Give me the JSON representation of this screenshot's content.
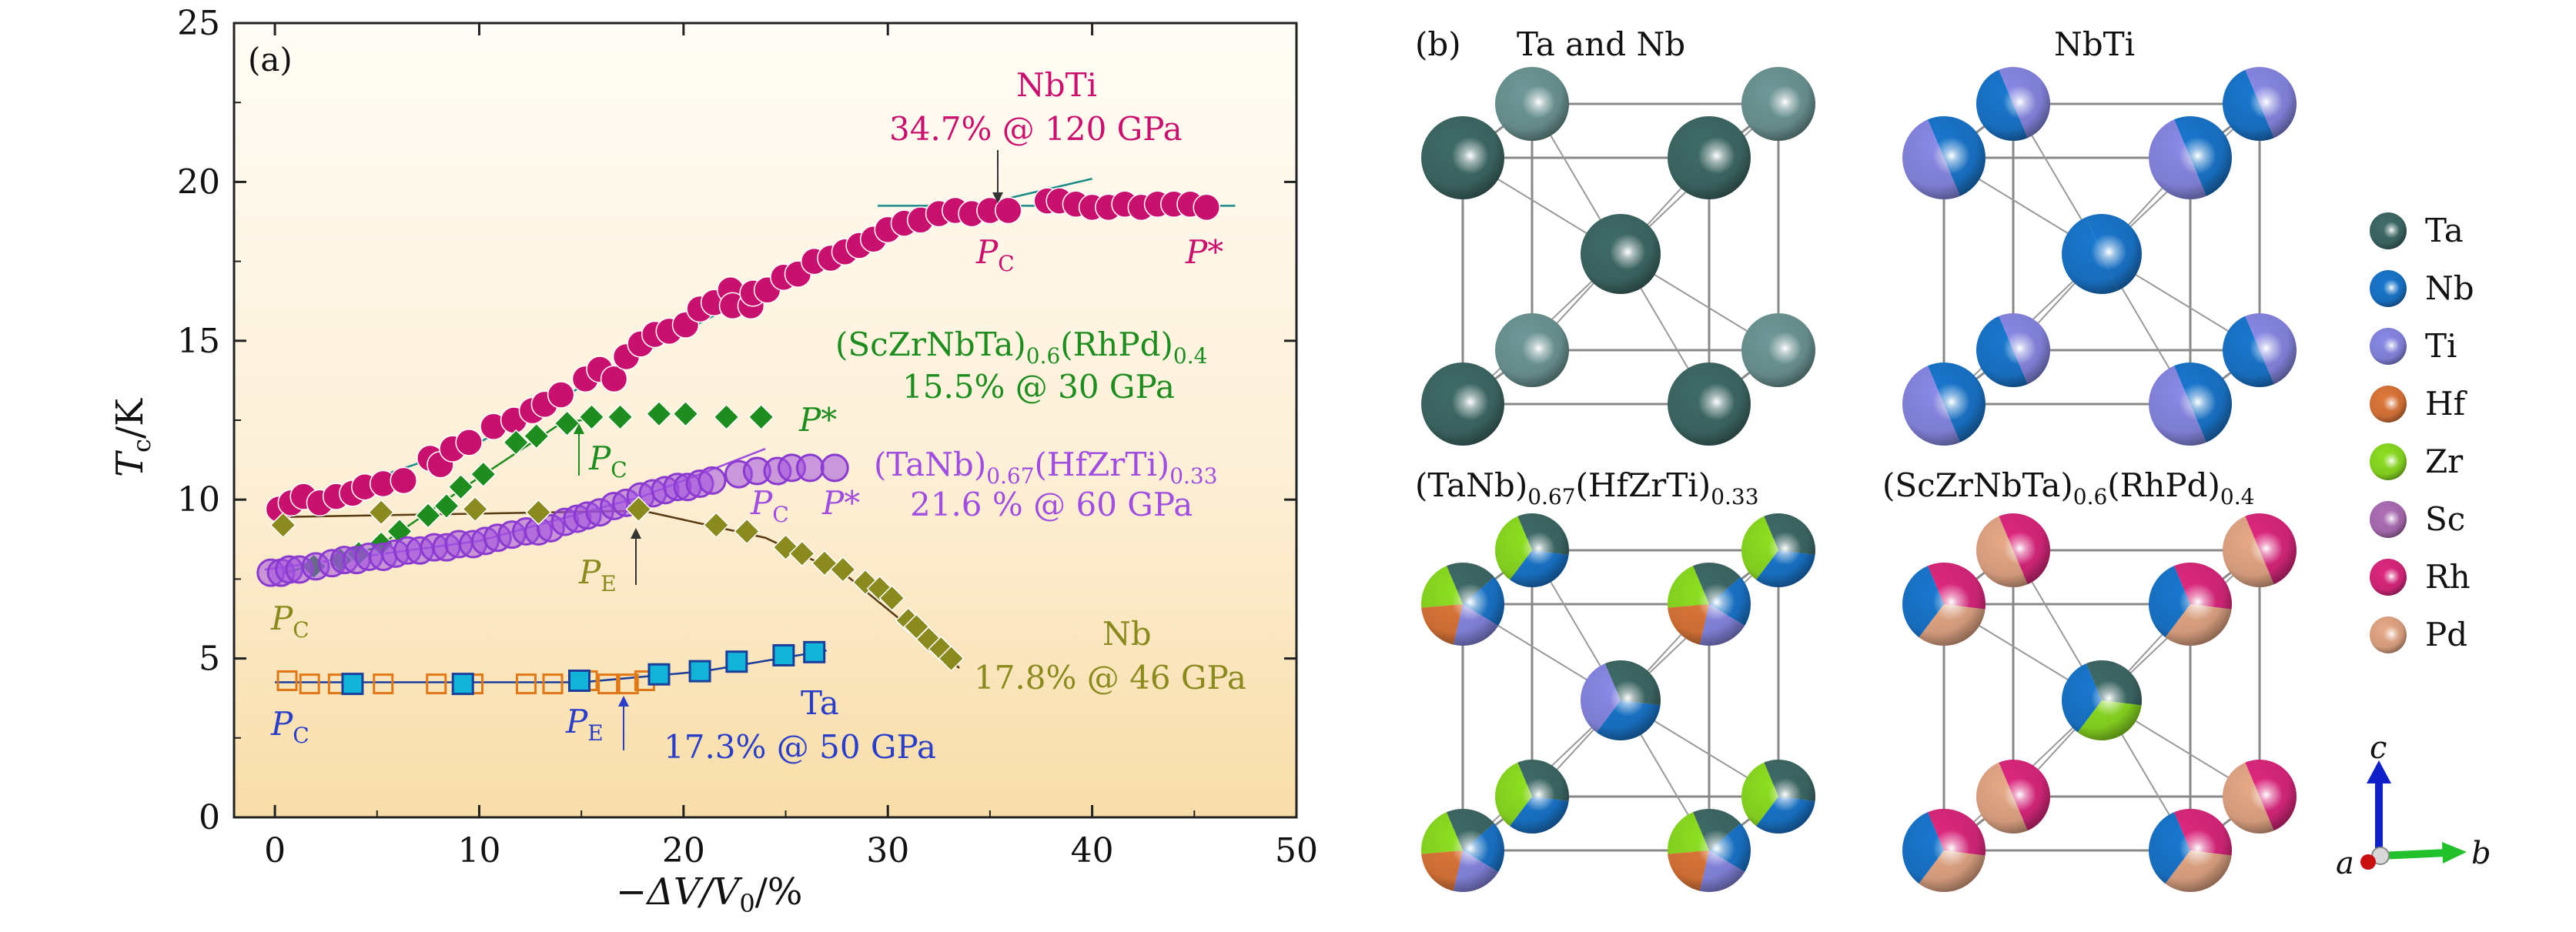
{
  "panel_a": {
    "label": "(a)",
    "xlabel": "−ΔV/V",
    "xlabel_sub": "0",
    "xlabel_suffix": "/%",
    "ylabel": "T",
    "ylabel_sub": "c",
    "ylabel_suffix": "/K",
    "annotations": {
      "nbti_name": "NbTi",
      "nbti_detail": "34.7% @ 120 GPa",
      "hea1_name_a": "(ScZrNbTa)",
      "hea1_name_sub1": "0.6",
      "hea1_name_b": "(RhPd)",
      "hea1_name_sub2": "0.4",
      "hea1_detail": "15.5% @ 30 GPa",
      "hea2_name_a": "(TaNb)",
      "hea2_name_sub1": "0.67",
      "hea2_name_b": "(HfZrTi)",
      "hea2_name_sub2": "0.33",
      "hea2_detail": "21.6 % @ 60 GPa",
      "nb_name": "Nb",
      "nb_detail": "17.8% @ 46 GPa",
      "ta_name": "Ta",
      "ta_detail": "17.3% @ 50 GPa",
      "p": "P",
      "sub_c": "C",
      "sub_e": "E",
      "p_star": "P*"
    }
  },
  "panel_b": {
    "label": "(b)",
    "titles": {
      "ta_nb": "Ta and Nb",
      "nbti": "NbTi",
      "hea2_a": "(TaNb)",
      "hea2_s1": "0.67",
      "hea2_b": "(HfZrTi)",
      "hea2_s2": "0.33",
      "hea1_a": "(ScZrNbTa)",
      "hea1_s1": "0.6",
      "hea1_b": "(RhPd)",
      "hea1_s2": "0.4"
    },
    "legend": [
      {
        "label": "Ta",
        "color": "#3f6b68"
      },
      {
        "label": "Nb",
        "color": "#1a78d0"
      },
      {
        "label": "Ti",
        "color": "#8a8ae8"
      },
      {
        "label": "Hf",
        "color": "#e0783a"
      },
      {
        "label": "Zr",
        "color": "#8ee022"
      },
      {
        "label": "Sc",
        "color": "#b070b8"
      },
      {
        "label": "Rh",
        "color": "#e02880"
      },
      {
        "label": "Pd",
        "color": "#e8aa88"
      }
    ],
    "axes": {
      "c": "c",
      "a": "a",
      "b": "b"
    }
  },
  "chart_data": {
    "type": "scatter",
    "xlabel": "−ΔV/V0/%",
    "ylabel": "Tc/K",
    "xlim": [
      -2,
      50
    ],
    "ylim": [
      0,
      25
    ],
    "xticks": [
      0,
      10,
      20,
      30,
      40,
      50
    ],
    "yticks": [
      0,
      5,
      10,
      15,
      20,
      25
    ],
    "grid": false,
    "series": [
      {
        "name": "NbTi",
        "color": "#c8106e",
        "marker": "circle",
        "points": [
          [
            0.2,
            9.7
          ],
          [
            0.8,
            9.9
          ],
          [
            1.4,
            10.1
          ],
          [
            2.2,
            9.9
          ],
          [
            3.0,
            10.1
          ],
          [
            3.8,
            10.2
          ],
          [
            4.4,
            10.4
          ],
          [
            5.3,
            10.5
          ],
          [
            6.3,
            10.6
          ],
          [
            7.6,
            11.3
          ],
          [
            8.1,
            11.1
          ],
          [
            8.7,
            11.6
          ],
          [
            9.5,
            11.8
          ],
          [
            10.7,
            12.3
          ],
          [
            11.7,
            12.5
          ],
          [
            12.6,
            12.8
          ],
          [
            13.2,
            13.0
          ],
          [
            14.0,
            13.3
          ],
          [
            15.2,
            13.8
          ],
          [
            15.9,
            14.1
          ],
          [
            16.6,
            13.8
          ],
          [
            17.2,
            14.5
          ],
          [
            17.9,
            14.9
          ],
          [
            18.6,
            15.2
          ],
          [
            19.3,
            15.3
          ],
          [
            20.1,
            15.5
          ],
          [
            20.8,
            16.0
          ],
          [
            21.5,
            16.2
          ],
          [
            22.3,
            16.6
          ],
          [
            22.4,
            16.1
          ],
          [
            23.3,
            16.1
          ],
          [
            23.4,
            16.5
          ],
          [
            24.1,
            16.6
          ],
          [
            24.9,
            17.0
          ],
          [
            25.6,
            17.1
          ],
          [
            26.4,
            17.5
          ],
          [
            27.2,
            17.6
          ],
          [
            27.9,
            17.8
          ],
          [
            28.6,
            18.0
          ],
          [
            29.3,
            18.2
          ],
          [
            30.0,
            18.5
          ],
          [
            30.8,
            18.7
          ],
          [
            31.6,
            18.8
          ],
          [
            32.5,
            19.0
          ],
          [
            33.3,
            19.1
          ],
          [
            34.1,
            19.0
          ],
          [
            35.0,
            19.1
          ],
          [
            35.9,
            19.1
          ],
          [
            37.8,
            19.4
          ],
          [
            38.4,
            19.4
          ],
          [
            39.2,
            19.3
          ],
          [
            40.0,
            19.2
          ],
          [
            40.8,
            19.2
          ],
          [
            41.6,
            19.3
          ],
          [
            42.4,
            19.2
          ],
          [
            43.2,
            19.3
          ],
          [
            44.0,
            19.3
          ],
          [
            44.8,
            19.3
          ],
          [
            45.6,
            19.2
          ]
        ]
      },
      {
        "name": "(ScZrNbTa)0.6(RhPd)0.4",
        "color": "#1e8c1e",
        "marker": "diamond",
        "points": [
          [
            1.9,
            7.9
          ],
          [
            3.2,
            8.1
          ],
          [
            4.1,
            8.3
          ],
          [
            5.2,
            8.6
          ],
          [
            6.1,
            9.0
          ],
          [
            7.5,
            9.5
          ],
          [
            8.4,
            9.8
          ],
          [
            9.1,
            10.4
          ],
          [
            10.2,
            10.8
          ],
          [
            11.8,
            11.8
          ],
          [
            12.8,
            12.0
          ],
          [
            14.3,
            12.4
          ],
          [
            15.5,
            12.6
          ],
          [
            16.9,
            12.6
          ],
          [
            18.8,
            12.7
          ],
          [
            20.1,
            12.7
          ],
          [
            22.1,
            12.6
          ],
          [
            23.8,
            12.6
          ]
        ]
      },
      {
        "name": "(TaNb)0.67(HfZrTi)0.33",
        "color": "#a04ee0",
        "marker": "circle",
        "points": [
          [
            -0.2,
            7.7
          ],
          [
            0.3,
            7.7
          ],
          [
            0.7,
            7.8
          ],
          [
            1.2,
            7.8
          ],
          [
            2.0,
            7.9
          ],
          [
            2.8,
            8.0
          ],
          [
            3.4,
            8.1
          ],
          [
            4.0,
            8.1
          ],
          [
            4.6,
            8.2
          ],
          [
            5.3,
            8.2
          ],
          [
            5.9,
            8.3
          ],
          [
            6.5,
            8.4
          ],
          [
            7.1,
            8.4
          ],
          [
            7.8,
            8.5
          ],
          [
            8.4,
            8.5
          ],
          [
            9.0,
            8.6
          ],
          [
            9.7,
            8.6
          ],
          [
            10.3,
            8.7
          ],
          [
            10.9,
            8.8
          ],
          [
            11.6,
            8.9
          ],
          [
            12.3,
            9.0
          ],
          [
            12.9,
            9.0
          ],
          [
            13.5,
            9.1
          ],
          [
            14.2,
            9.3
          ],
          [
            14.8,
            9.4
          ],
          [
            15.3,
            9.5
          ],
          [
            15.9,
            9.6
          ],
          [
            16.6,
            9.8
          ],
          [
            17.2,
            9.9
          ],
          [
            17.9,
            10.1
          ],
          [
            18.5,
            10.2
          ],
          [
            19.1,
            10.3
          ],
          [
            19.7,
            10.4
          ],
          [
            20.2,
            10.4
          ],
          [
            20.8,
            10.5
          ],
          [
            21.4,
            10.6
          ],
          [
            22.7,
            10.8
          ],
          [
            23.6,
            10.9
          ],
          [
            24.6,
            10.9
          ],
          [
            25.3,
            11.0
          ],
          [
            26.2,
            11.0
          ],
          [
            27.4,
            11.0
          ]
        ]
      },
      {
        "name": "Nb",
        "color": "#8a8a1e",
        "marker": "diamond",
        "points": [
          [
            0.4,
            9.2
          ],
          [
            5.2,
            9.6
          ],
          [
            9.8,
            9.7
          ],
          [
            12.9,
            9.6
          ],
          [
            17.8,
            9.7
          ],
          [
            21.6,
            9.2
          ],
          [
            23.1,
            9.0
          ],
          [
            25.0,
            8.5
          ],
          [
            25.8,
            8.3
          ],
          [
            26.9,
            8.0
          ],
          [
            27.8,
            7.8
          ],
          [
            28.9,
            7.4
          ],
          [
            29.6,
            7.2
          ],
          [
            30.2,
            6.9
          ],
          [
            31.0,
            6.2
          ],
          [
            31.4,
            6.0
          ],
          [
            32.0,
            5.6
          ],
          [
            32.6,
            5.3
          ],
          [
            33.1,
            5.0
          ]
        ]
      },
      {
        "name": "Ta",
        "color": "#e07818",
        "marker": "square-open",
        "points": [
          [
            0.6,
            4.3
          ],
          [
            1.7,
            4.2
          ],
          [
            3.1,
            4.2
          ],
          [
            5.3,
            4.2
          ],
          [
            7.9,
            4.2
          ],
          [
            9.7,
            4.2
          ],
          [
            12.3,
            4.2
          ],
          [
            13.6,
            4.2
          ],
          [
            15.3,
            4.3
          ],
          [
            16.3,
            4.2
          ],
          [
            17.3,
            4.2
          ],
          [
            18.1,
            4.3
          ]
        ]
      },
      {
        "name": "Ta",
        "color": "#12b5d8",
        "marker": "square-filled",
        "points": [
          [
            3.8,
            4.2
          ],
          [
            9.2,
            4.2
          ],
          [
            14.9,
            4.3
          ],
          [
            18.8,
            4.5
          ],
          [
            20.8,
            4.6
          ],
          [
            22.6,
            4.9
          ],
          [
            24.9,
            5.1
          ],
          [
            26.4,
            5.2
          ]
        ]
      }
    ]
  }
}
